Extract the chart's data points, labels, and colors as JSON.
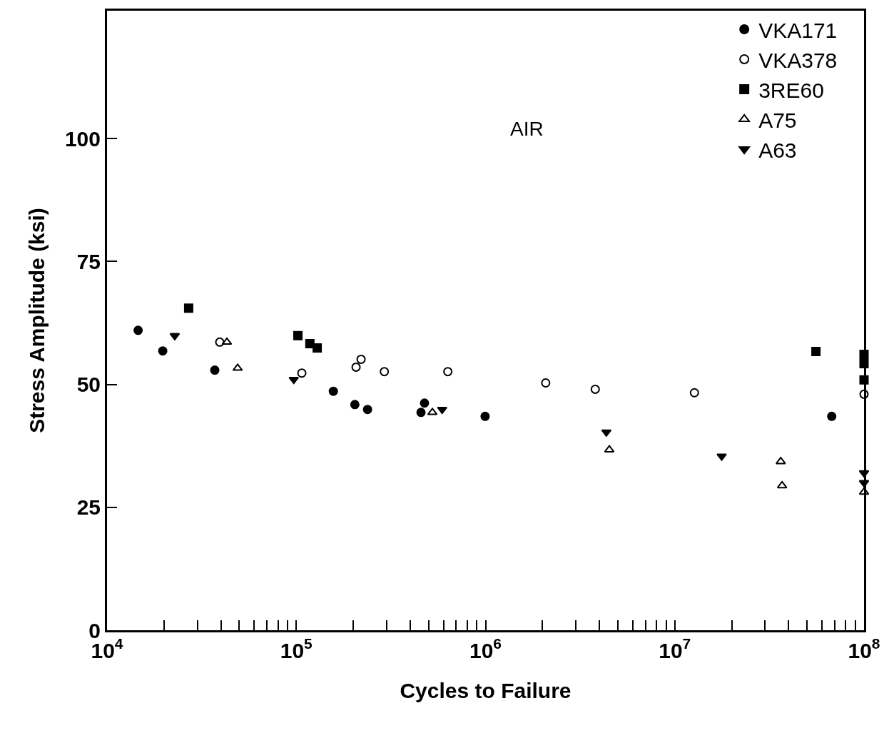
{
  "chart_data": {
    "type": "scatter",
    "xlabel": "Cycles to Failure",
    "ylabel": "Stress Amplitude (ksi)",
    "annotations": [
      "AIR"
    ],
    "log": "x",
    "legend": "top right",
    "xlim": [
      10000,
      100000000
    ],
    "ylim": [
      0,
      126
    ],
    "xticks": [
      {
        "value": 10000,
        "label": "10$^{4}$"
      },
      {
        "value": 20000,
        "label": null
      },
      {
        "value": 30000,
        "label": null
      },
      {
        "value": 40000,
        "label": null
      },
      {
        "value": 50000,
        "label": null
      },
      {
        "value": 60000,
        "label": null
      },
      {
        "value": 70000,
        "label": null
      },
      {
        "value": 80000,
        "label": null
      },
      {
        "value": 90000,
        "label": null
      },
      {
        "value": 100000,
        "label": "10$^{5}$"
      },
      {
        "value": 200000,
        "label": null
      },
      {
        "value": 300000,
        "label": null
      },
      {
        "value": 400000,
        "label": null
      },
      {
        "value": 500000,
        "label": null
      },
      {
        "value": 600000,
        "label": null
      },
      {
        "value": 700000,
        "label": null
      },
      {
        "value": 800000,
        "label": null
      },
      {
        "value": 900000,
        "label": null
      },
      {
        "value": 1000000,
        "label": "10$^{6}$"
      },
      {
        "value": 2000000,
        "label": null
      },
      {
        "value": 3000000,
        "label": null
      },
      {
        "value": 4000000,
        "label": null
      },
      {
        "value": 5000000,
        "label": null
      },
      {
        "value": 6000000,
        "label": null
      },
      {
        "value": 7000000,
        "label": null
      },
      {
        "value": 8000000,
        "label": null
      },
      {
        "value": 9000000,
        "label": null
      },
      {
        "value": 10000000,
        "label": "10$^{7}$"
      },
      {
        "value": 20000000,
        "label": null
      },
      {
        "value": 30000000,
        "label": null
      },
      {
        "value": 40000000,
        "label": null
      },
      {
        "value": 50000000,
        "label": null
      },
      {
        "value": 60000000,
        "label": null
      },
      {
        "value": 70000000,
        "label": null
      },
      {
        "value": 80000000,
        "label": null
      },
      {
        "value": 90000000,
        "label": null
      },
      {
        "value": 100000000,
        "label": "10$^{8}$"
      }
    ],
    "yticks": [
      0,
      25,
      50,
      75,
      100
    ],
    "series": [
      {
        "name": "VKA171",
        "color": "#000000",
        "marker": "circle",
        "x": [
          14600,
          19700,
          37100,
          157000,
          204000,
          238000,
          456000,
          476000,
          995000,
          67500000
        ],
        "values": [
          61.0,
          56.8,
          52.9,
          48.6,
          45.9,
          44.9,
          44.3,
          46.2,
          43.5,
          43.5
        ]
      },
      {
        "name": "VKA378",
        "color": "#000000",
        "marker": "circle-open",
        "x": [
          39400,
          107000,
          207000,
          220000,
          292000,
          632000,
          2080000,
          3800000,
          12700000,
          100000000
        ],
        "values": [
          58.6,
          52.3,
          53.5,
          55.1,
          52.6,
          52.6,
          50.3,
          49.0,
          48.3,
          48.0
        ]
      },
      {
        "name": "3RE60",
        "color": "#000000",
        "marker": "square",
        "x": [
          27000,
          102000,
          118000,
          129000,
          55700000,
          100000000,
          100000000,
          100000000
        ],
        "values": [
          65.5,
          59.9,
          58.3,
          57.4,
          56.7,
          56.1,
          54.2,
          50.9
        ]
      },
      {
        "name": "A75",
        "color": "#000000",
        "marker": "triangle-open",
        "x": [
          43000,
          49000,
          524000,
          4510000,
          36300000,
          36900000,
          100000000
        ],
        "values": [
          58.6,
          53.3,
          44.3,
          36.7,
          34.3,
          29.4,
          28.1
        ]
      },
      {
        "name": "A63",
        "color": "#000000",
        "marker": "triangle-down",
        "x": [
          22800,
          97000,
          590000,
          4350000,
          17700000,
          100000000,
          100000000
        ],
        "values": [
          59.9,
          51.0,
          44.9,
          40.3,
          35.4,
          32.0,
          30.0
        ]
      }
    ]
  }
}
